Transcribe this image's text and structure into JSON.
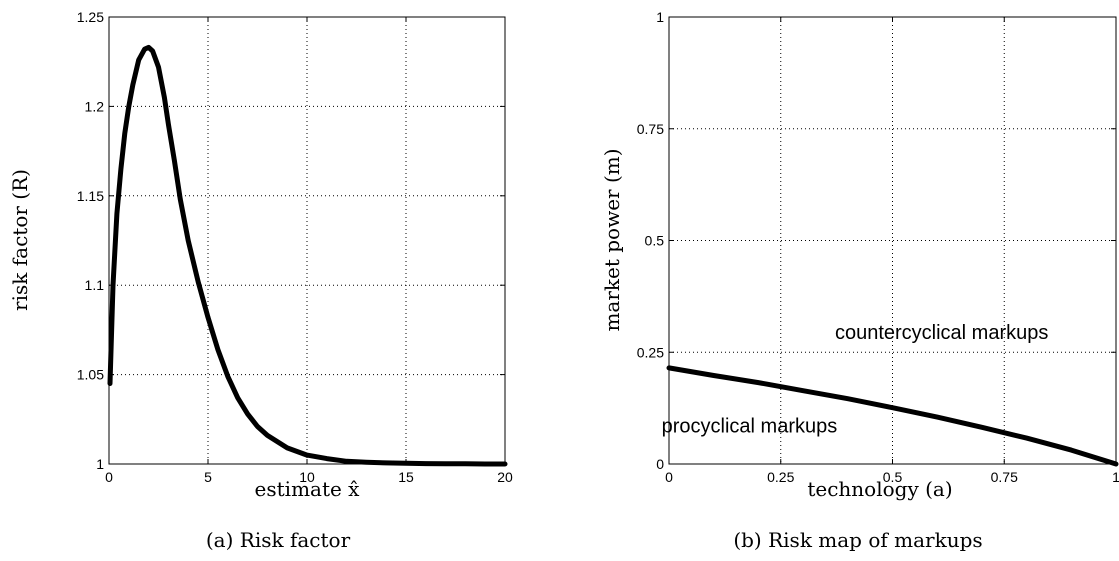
{
  "chart_data": [
    {
      "type": "line",
      "caption": "(a)  Risk factor",
      "xlabel": "estimate x̂",
      "ylabel": "risk factor (R)",
      "xlim": [
        0,
        20
      ],
      "ylim": [
        1,
        1.25
      ],
      "xticks": [
        0,
        5,
        10,
        15,
        20
      ],
      "xtick_labels": [
        "0",
        "5",
        "10",
        "15",
        "20"
      ],
      "yticks": [
        1,
        1.05,
        1.1,
        1.15,
        1.2,
        1.25
      ],
      "ytick_labels": [
        "1",
        "1.05",
        "1.1",
        "1.15",
        "1.2",
        "1.25"
      ],
      "grid": true,
      "series": [
        {
          "x": [
            0.05,
            0.2,
            0.4,
            0.6,
            0.8,
            1.0,
            1.2,
            1.5,
            1.8,
            2.0,
            2.2,
            2.5,
            2.8,
            3.0,
            3.3,
            3.6,
            4.0,
            4.5,
            5.0,
            5.5,
            6.0,
            6.5,
            7.0,
            7.5,
            8.0,
            9.0,
            10.0,
            11.0,
            12.0,
            13.0,
            14.0,
            15.0,
            16.0,
            17.0,
            18.0,
            19.0,
            20.0
          ],
          "y": [
            1.045,
            1.1,
            1.14,
            1.165,
            1.185,
            1.2,
            1.212,
            1.226,
            1.232,
            1.233,
            1.231,
            1.222,
            1.205,
            1.19,
            1.17,
            1.148,
            1.125,
            1.102,
            1.082,
            1.064,
            1.049,
            1.037,
            1.028,
            1.021,
            1.016,
            1.009,
            1.005,
            1.003,
            1.0015,
            1.001,
            1.0006,
            1.0004,
            1.0002,
            1.0001,
            1.0001,
            1.0,
            1.0
          ]
        }
      ]
    },
    {
      "type": "line",
      "caption": "(b)  Risk map of markups",
      "xlabel": "technology (a)",
      "ylabel": "market power (m)",
      "xlim": [
        0,
        1
      ],
      "ylim": [
        0,
        1
      ],
      "xticks": [
        0,
        0.25,
        0.5,
        0.75,
        1
      ],
      "xtick_labels": [
        "0",
        "0.25",
        "0.5",
        "0.75",
        "1"
      ],
      "yticks": [
        0,
        0.25,
        0.5,
        0.75,
        1
      ],
      "ytick_labels": [
        "0",
        "0.25",
        "0.5",
        "0.75",
        "1"
      ],
      "grid": true,
      "annotations": [
        {
          "text": "countercyclical markups",
          "x": 0.61,
          "y": 0.28
        },
        {
          "text": "procyclical markups",
          "x": 0.18,
          "y": 0.07
        }
      ],
      "series": [
        {
          "x": [
            0,
            0.1,
            0.2,
            0.3,
            0.4,
            0.5,
            0.6,
            0.7,
            0.8,
            0.9,
            1.0
          ],
          "y": [
            0.215,
            0.198,
            0.182,
            0.164,
            0.146,
            0.126,
            0.105,
            0.082,
            0.058,
            0.031,
            0.0
          ]
        }
      ]
    }
  ]
}
